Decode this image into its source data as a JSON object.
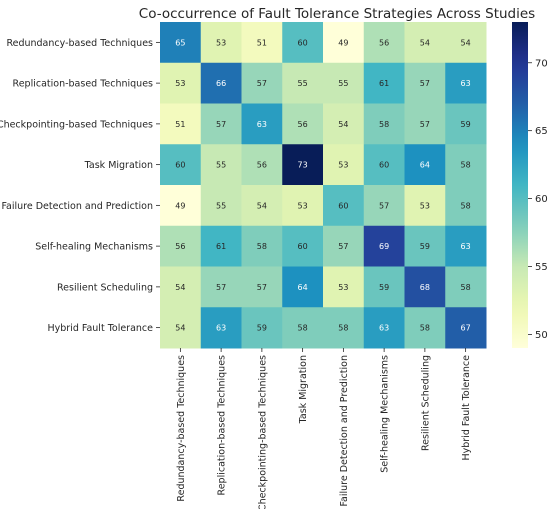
{
  "chart_data": {
    "type": "heatmap",
    "title": "Co-occurrence of Fault Tolerance Strategies Across Studies",
    "xlabel": "",
    "ylabel": "",
    "rows": [
      "Redundancy-based Techniques",
      "Replication-based Techniques",
      "Checkpointing-based Techniques",
      "Task Migration",
      "Failure Detection and Prediction",
      "Self-healing Mechanisms",
      "Resilient Scheduling",
      "Hybrid Fault Tolerance"
    ],
    "columns": [
      "Redundancy-based Techniques",
      "Replication-based Techniques",
      "Checkpointing-based Techniques",
      "Task Migration",
      "Failure Detection and Prediction",
      "Self-healing Mechanisms",
      "Resilient Scheduling",
      "Hybrid Fault Tolerance"
    ],
    "values": [
      [
        65,
        53,
        51,
        60,
        49,
        56,
        54,
        54
      ],
      [
        53,
        66,
        57,
        55,
        55,
        61,
        57,
        63
      ],
      [
        51,
        57,
        63,
        56,
        54,
        58,
        57,
        59
      ],
      [
        60,
        55,
        56,
        73,
        53,
        60,
        64,
        58
      ],
      [
        49,
        55,
        54,
        53,
        60,
        57,
        53,
        58
      ],
      [
        56,
        61,
        58,
        60,
        57,
        69,
        59,
        63
      ],
      [
        54,
        57,
        57,
        64,
        53,
        59,
        68,
        58
      ],
      [
        54,
        63,
        59,
        58,
        58,
        63,
        58,
        67
      ]
    ],
    "colormap": "YlGnBu",
    "colorbar": {
      "range": [
        49,
        73
      ],
      "ticks": [
        50,
        55,
        60,
        65,
        70
      ]
    }
  }
}
